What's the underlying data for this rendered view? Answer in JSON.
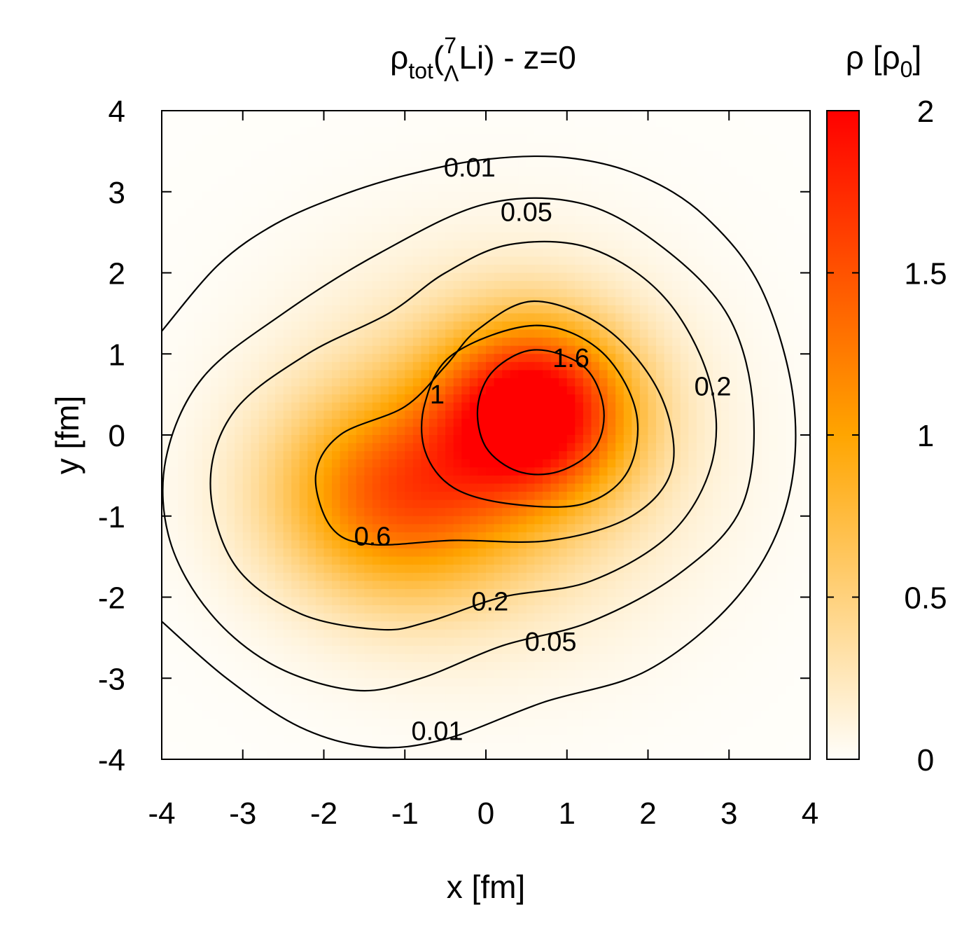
{
  "chart_data": {
    "type": "heatmap",
    "title": {
      "rho": "ρ",
      "sub": "tot",
      "open": "(",
      "superscript": "7",
      "subscript": "Λ",
      "element": "Li)",
      "suffix": " - z=0"
    },
    "xlabel": "x [fm]",
    "ylabel": "y [fm]",
    "xlim": [
      -4,
      4
    ],
    "ylim": [
      -4,
      4
    ],
    "xticks": [
      "-4",
      "-3",
      "-2",
      "-1",
      "0",
      "1",
      "2",
      "3",
      "4"
    ],
    "yticks": [
      "-4",
      "-3",
      "-2",
      "-1",
      "0",
      "1",
      "2",
      "3",
      "4"
    ],
    "colorbar": {
      "label_main": "ρ [ρ",
      "label_sub": "0",
      "label_close": "]",
      "range": [
        0,
        2
      ],
      "ticks": [
        "0",
        "0.5",
        "1",
        "1.5",
        "2"
      ],
      "colors": [
        "#fffefa",
        "#ffa500",
        "#ff0000"
      ]
    },
    "peak": {
      "x": 0.6,
      "y": 0.3,
      "value": 2.0
    },
    "contour_levels": [
      0.01,
      0.05,
      0.2,
      0.6,
      1,
      1.6
    ],
    "contour_labels": [
      {
        "text": "0.01",
        "x": -0.2,
        "y": 3.3
      },
      {
        "text": "0.05",
        "x": 0.5,
        "y": 2.75
      },
      {
        "text": "1.6",
        "x": 1.05,
        "y": 0.95
      },
      {
        "text": "0.2",
        "x": 2.8,
        "y": 0.6
      },
      {
        "text": "1",
        "x": -0.6,
        "y": 0.5
      },
      {
        "text": "0.6",
        "x": -1.4,
        "y": -1.25
      },
      {
        "text": "0.2",
        "x": 0.05,
        "y": -2.05
      },
      {
        "text": "0.05",
        "x": 0.8,
        "y": -2.55
      },
      {
        "text": "0.01",
        "x": -0.6,
        "y": -3.65
      }
    ],
    "contours": [
      {
        "level": 0.01,
        "points": [
          [
            -4,
            1.28
          ],
          [
            -3.3,
            2.1
          ],
          [
            -2.6,
            2.6
          ],
          [
            -1.8,
            2.95
          ],
          [
            -1,
            3.2
          ],
          [
            0,
            3.4
          ],
          [
            1,
            3.42
          ],
          [
            1.9,
            3.2
          ],
          [
            2.7,
            2.7
          ],
          [
            3.4,
            1.8
          ],
          [
            3.8,
            0.4
          ],
          [
            3.7,
            -0.9
          ],
          [
            3.1,
            -2
          ],
          [
            2,
            -2.9
          ],
          [
            0.7,
            -3.3
          ],
          [
            -0.5,
            -3.75
          ],
          [
            -1.4,
            -3.85
          ],
          [
            -2.3,
            -3.6
          ],
          [
            -3.2,
            -3
          ],
          [
            -4,
            -2.3
          ]
        ],
        "closed": false
      },
      {
        "level": 0.05,
        "points": [
          [
            0,
            2.85
          ],
          [
            1.2,
            2.85
          ],
          [
            2.2,
            2.3
          ],
          [
            3,
            1.45
          ],
          [
            3.3,
            0.3
          ],
          [
            3.15,
            -0.9
          ],
          [
            2.4,
            -1.7
          ],
          [
            1.3,
            -2.3
          ],
          [
            0.2,
            -2.6
          ],
          [
            -0.8,
            -3
          ],
          [
            -1.6,
            -3.15
          ],
          [
            -2.6,
            -2.85
          ],
          [
            -3.4,
            -2.2
          ],
          [
            -3.9,
            -1.3
          ],
          [
            -3.95,
            -0.3
          ],
          [
            -3.5,
            0.7
          ],
          [
            -2.5,
            1.5
          ],
          [
            -1.3,
            2.25
          ]
        ],
        "closed": true
      },
      {
        "level": 0.2,
        "points": [
          [
            0.3,
            2.35
          ],
          [
            1.3,
            2.3
          ],
          [
            2.2,
            1.7
          ],
          [
            2.75,
            0.7
          ],
          [
            2.8,
            -0.3
          ],
          [
            2.3,
            -1.2
          ],
          [
            1.3,
            -1.8
          ],
          [
            0.2,
            -2
          ],
          [
            -0.7,
            -2.3
          ],
          [
            -1.3,
            -2.4
          ],
          [
            -2.3,
            -2.2
          ],
          [
            -3.1,
            -1.6
          ],
          [
            -3.4,
            -0.6
          ],
          [
            -3.1,
            0.3
          ],
          [
            -2.2,
            1
          ],
          [
            -1.2,
            1.5
          ],
          [
            -0.5,
            2
          ]
        ],
        "closed": true
      },
      {
        "level": 0.6,
        "points": [
          [
            0.6,
            1.65
          ],
          [
            1.5,
            1.3
          ],
          [
            2.15,
            0.5
          ],
          [
            2.3,
            -0.4
          ],
          [
            1.8,
            -1
          ],
          [
            0.8,
            -1.3
          ],
          [
            -0.4,
            -1.3
          ],
          [
            -1.4,
            -1.35
          ],
          [
            -1.9,
            -1.15
          ],
          [
            -2.1,
            -0.5
          ],
          [
            -1.8,
            0
          ],
          [
            -1,
            0.35
          ],
          [
            -0.5,
            0.85
          ],
          [
            -0.1,
            1.3
          ]
        ],
        "closed": true
      },
      {
        "level": 1,
        "points": [
          [
            0.6,
            1.35
          ],
          [
            1.4,
            1.05
          ],
          [
            1.85,
            0.3
          ],
          [
            1.75,
            -0.45
          ],
          [
            1.2,
            -0.85
          ],
          [
            0.3,
            -0.85
          ],
          [
            -0.4,
            -0.65
          ],
          [
            -0.75,
            -0.2
          ],
          [
            -0.75,
            0.4
          ],
          [
            -0.4,
            1
          ]
        ],
        "closed": true
      },
      {
        "level": 1.6,
        "points": [
          [
            0.6,
            1.05
          ],
          [
            1.2,
            0.85
          ],
          [
            1.45,
            0.35
          ],
          [
            1.35,
            -0.15
          ],
          [
            0.9,
            -0.45
          ],
          [
            0.4,
            -0.45
          ],
          [
            0,
            -0.15
          ],
          [
            -0.1,
            0.35
          ],
          [
            0.1,
            0.8
          ]
        ],
        "closed": true
      }
    ]
  }
}
